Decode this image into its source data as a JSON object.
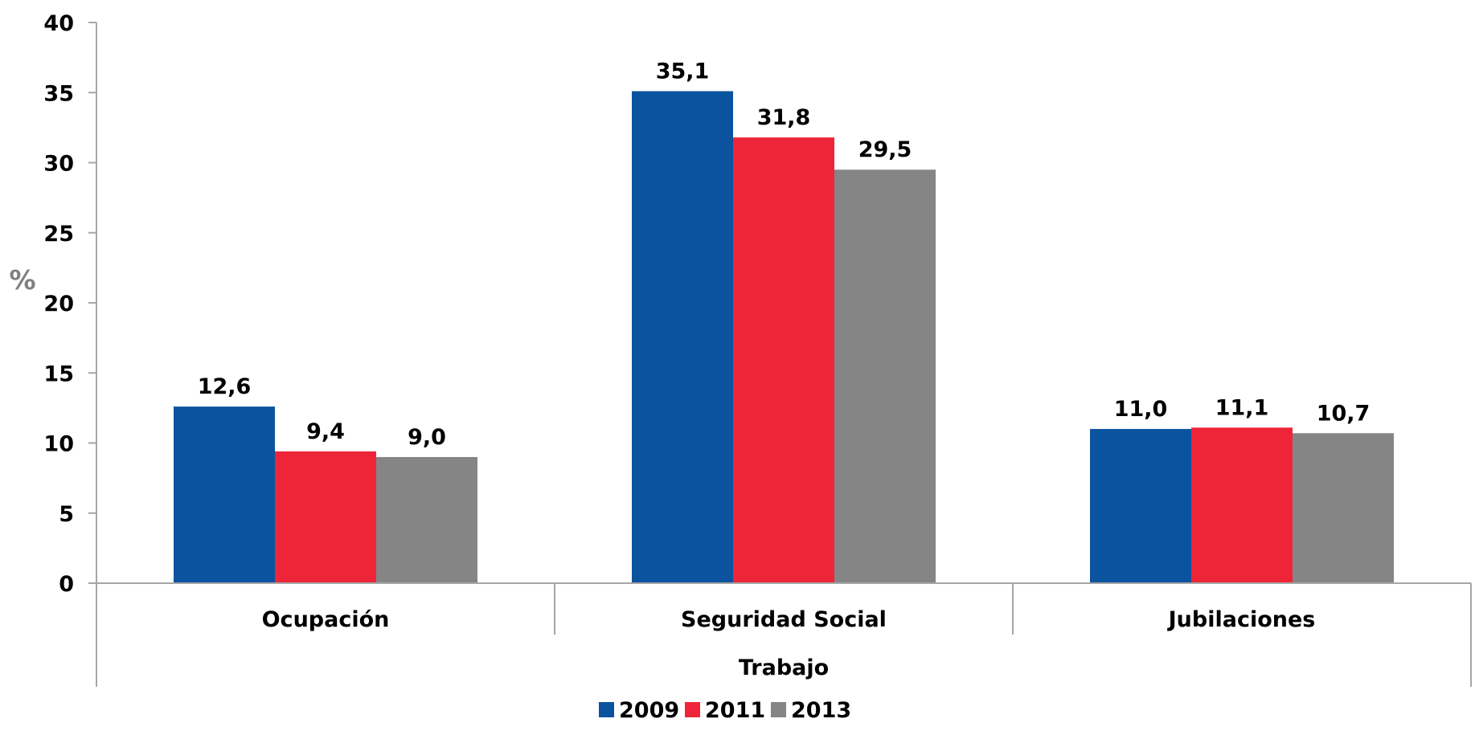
{
  "chart_data": {
    "type": "bar",
    "title": "",
    "xlabel": "Trabajo",
    "ylabel": "%",
    "ylim": [
      0,
      40
    ],
    "yticks": [
      0,
      5,
      10,
      15,
      20,
      25,
      30,
      35,
      40
    ],
    "grid": false,
    "legend_position": "bottom",
    "categories": [
      "Ocupación",
      "Seguridad Social",
      "Jubilaciones"
    ],
    "series": [
      {
        "name": "2009",
        "color": "#0b539e",
        "values": [
          12.6,
          35.1,
          11.0
        ],
        "labels": [
          "12,6",
          "35,1",
          "11,0"
        ]
      },
      {
        "name": "2011",
        "color": "#ee2538",
        "values": [
          9.4,
          31.8,
          11.1
        ],
        "labels": [
          "9,4",
          "31,8",
          "11,1"
        ]
      },
      {
        "name": "2013",
        "color": "#858585",
        "values": [
          9.0,
          29.5,
          10.7
        ],
        "labels": [
          "9,0",
          "29,5",
          "10,7"
        ]
      }
    ]
  }
}
